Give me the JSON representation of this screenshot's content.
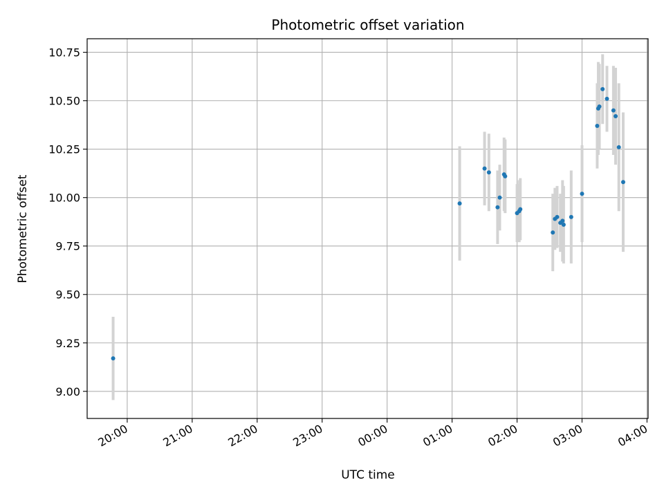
{
  "chart_data": {
    "type": "scatter",
    "title": "Photometric offset variation",
    "xlabel": "UTC time",
    "ylabel": "Photometric offset",
    "x_unit": "UTC",
    "xlim": [
      "19:23",
      "04:01"
    ],
    "ylim": [
      8.86,
      10.82
    ],
    "x_ticks": [
      "20:00",
      "21:00",
      "22:00",
      "23:00",
      "00:00",
      "01:00",
      "02:00",
      "03:00",
      "04:00"
    ],
    "y_ticks": [
      "9.00",
      "9.25",
      "9.50",
      "9.75",
      "10.00",
      "10.25",
      "10.50",
      "10.75"
    ],
    "grid": true,
    "colors": {
      "point": "#1f77b4",
      "errorbar": "#d3d3d3",
      "grid": "#b0b0b0",
      "axes": "#000000"
    },
    "points": [
      {
        "t": "19:47",
        "y": 9.17,
        "err": 0.215
      },
      {
        "t": "01:07",
        "y": 9.97,
        "err": 0.295
      },
      {
        "t": "01:30",
        "y": 10.15,
        "err": 0.19
      },
      {
        "t": "01:34",
        "y": 10.13,
        "err": 0.2
      },
      {
        "t": "01:42",
        "y": 9.95,
        "err": 0.19
      },
      {
        "t": "01:44",
        "y": 10.0,
        "err": 0.17
      },
      {
        "t": "01:48",
        "y": 10.12,
        "err": 0.19
      },
      {
        "t": "01:49",
        "y": 10.11,
        "err": 0.19
      },
      {
        "t": "02:00",
        "y": 9.92,
        "err": 0.15
      },
      {
        "t": "02:02",
        "y": 9.93,
        "err": 0.16
      },
      {
        "t": "02:03",
        "y": 9.94,
        "err": 0.16
      },
      {
        "t": "02:33",
        "y": 9.82,
        "err": 0.2
      },
      {
        "t": "02:35",
        "y": 9.89,
        "err": 0.16
      },
      {
        "t": "02:37",
        "y": 9.9,
        "err": 0.16
      },
      {
        "t": "02:40",
        "y": 9.87,
        "err": 0.15
      },
      {
        "t": "02:42",
        "y": 9.88,
        "err": 0.21
      },
      {
        "t": "02:43",
        "y": 9.86,
        "err": 0.2
      },
      {
        "t": "02:50",
        "y": 9.9,
        "err": 0.24
      },
      {
        "t": "03:00",
        "y": 10.02,
        "err": 0.25
      },
      {
        "t": "03:14",
        "y": 10.37,
        "err": 0.22
      },
      {
        "t": "03:15",
        "y": 10.46,
        "err": 0.24
      },
      {
        "t": "03:16",
        "y": 10.47,
        "err": 0.22
      },
      {
        "t": "03:19",
        "y": 10.56,
        "err": 0.18
      },
      {
        "t": "03:23",
        "y": 10.51,
        "err": 0.17
      },
      {
        "t": "03:29",
        "y": 10.45,
        "err": 0.23
      },
      {
        "t": "03:31",
        "y": 10.42,
        "err": 0.25
      },
      {
        "t": "03:34",
        "y": 10.26,
        "err": 0.33
      },
      {
        "t": "03:38",
        "y": 10.08,
        "err": 0.36
      }
    ]
  }
}
